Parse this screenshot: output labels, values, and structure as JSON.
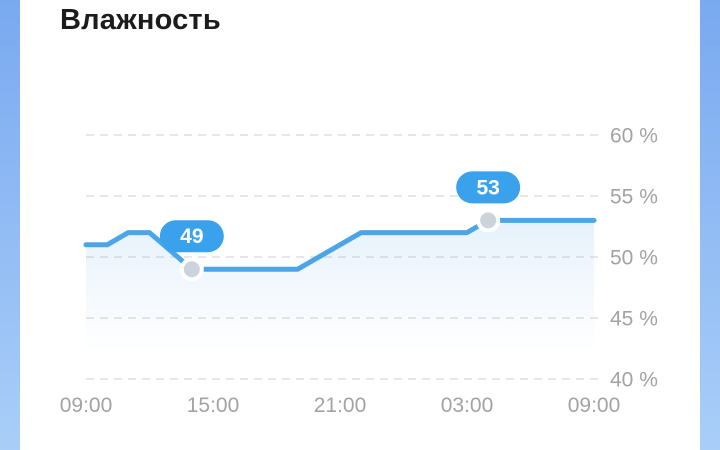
{
  "page": {
    "title": "Влажность"
  },
  "theme": {
    "background_gradient_top": "#79a9f0",
    "background_gradient_bottom": "#a9cef8",
    "card_color": "#ffffff",
    "title_color": "#1c1c1c",
    "line_color": "#4da5e9",
    "area_color": "#6eb2eb",
    "tooltip_color": "#3aa1ed",
    "tooltip_text_color": "#ffffff",
    "marker_fill": "#cdd3da",
    "marker_ring": "#ffffff",
    "grid_color": "#e5e6e8",
    "axis_text_color": "#a3a3a3"
  },
  "chart_data": {
    "type": "line",
    "title": "Влажность",
    "unit": "%",
    "grid": "dashed-horizontal",
    "legend": "none",
    "ylim": [
      40,
      60
    ],
    "y_tick_step": 5,
    "x_span_hours": 24,
    "x_start_hour": 9,
    "y_ticks": [
      "60 %",
      "55 %",
      "50 %",
      "45 %",
      "40 %"
    ],
    "x_ticks": [
      "09:00",
      "15:00",
      "21:00",
      "03:00",
      "09:00"
    ],
    "points": [
      {
        "time": "09:00",
        "value": 51
      },
      {
        "time": "10:00",
        "value": 51
      },
      {
        "time": "11:00",
        "value": 52
      },
      {
        "time": "12:00",
        "value": 52
      },
      {
        "time": "14:00",
        "value": 49
      },
      {
        "time": "19:00",
        "value": 49
      },
      {
        "time": "22:00",
        "value": 52
      },
      {
        "time": "03:00",
        "value": 52
      },
      {
        "time": "04:00",
        "value": 53
      },
      {
        "time": "09:00",
        "value": 53
      }
    ],
    "markers": [
      {
        "time": "14:00",
        "value": 49,
        "label": "49"
      },
      {
        "time": "04:00",
        "value": 53,
        "label": "53"
      }
    ]
  }
}
